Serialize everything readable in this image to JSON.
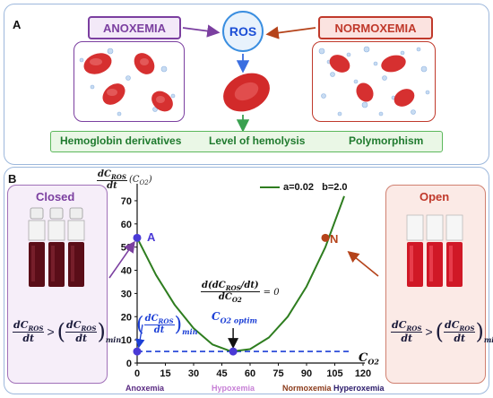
{
  "panel_a": {
    "letter": "A",
    "anoxemia_label": "ANOXEMIA",
    "normoxemia_label": "NORMOXEMIA",
    "ros_label": "ROS",
    "outcomes": [
      "Hemoglobin derivatives",
      "Level of hemolysis",
      "Polymorphism"
    ]
  },
  "panel_b": {
    "letter": "B",
    "closed_label": "Closed",
    "open_label": "Open",
    "point_a_label": "A",
    "point_n_label": "N",
    "params": "a=0.02   b=2.0",
    "ylabel_num": "dC",
    "ylabel_sub": "ROS",
    "ylabel_den": "dt",
    "ylabel_paren": "(C",
    "ylabel_paren_sub": "O2",
    "ylabel_close": ")",
    "xlabel": "C",
    "xlabel_sub": "O2",
    "deriv_num": "d(dC",
    "deriv_num_sub": "ROS",
    "deriv_num_end": "/dt)",
    "deriv_den": "dC",
    "deriv_den_sub": "O2",
    "deriv_eq": "= 0",
    "optim_label": "C",
    "optim_sub": "O2 optim",
    "min_num": "dC",
    "min_num_sub": "ROS",
    "min_den": "dt",
    "min_sub": "min",
    "ineq_gt": ">",
    "regions": [
      "Anoxemia",
      "Hypoxemia",
      "Normoxemia",
      "Hyperoxemia"
    ],
    "colors": {
      "curve": "#2e7d1f",
      "points": "#4a3ad6",
      "point_n": "#b5431a",
      "anoxemia": "#5a2a82",
      "hypoxemia": "#c77fd6",
      "normoxemia": "#8b3a1a",
      "hyperoxemia": "#2a1a6a"
    }
  },
  "chart_data": {
    "type": "line",
    "x_ticks": [
      0,
      15,
      30,
      45,
      60,
      75,
      90,
      105,
      120
    ],
    "y_ticks": [
      0,
      10,
      20,
      30,
      40,
      50,
      60,
      70
    ],
    "xlim": [
      0,
      120
    ],
    "ylim": [
      0,
      75
    ],
    "series": [
      {
        "x": [
          0,
          10,
          20,
          30,
          40,
          50,
          60,
          70,
          80,
          90,
          100,
          110
        ],
        "values": [
          54,
          38,
          25,
          15,
          8,
          5,
          6,
          11,
          20,
          33,
          50,
          72
        ]
      }
    ],
    "points": [
      {
        "label": "A",
        "x": 0,
        "y": 54
      },
      {
        "label": "N",
        "x": 100,
        "y": 54
      },
      {
        "label": "",
        "x": 51,
        "y": 5
      },
      {
        "label": "",
        "x": 0,
        "y": 5
      }
    ],
    "dashed_baseline_y": 5
  }
}
